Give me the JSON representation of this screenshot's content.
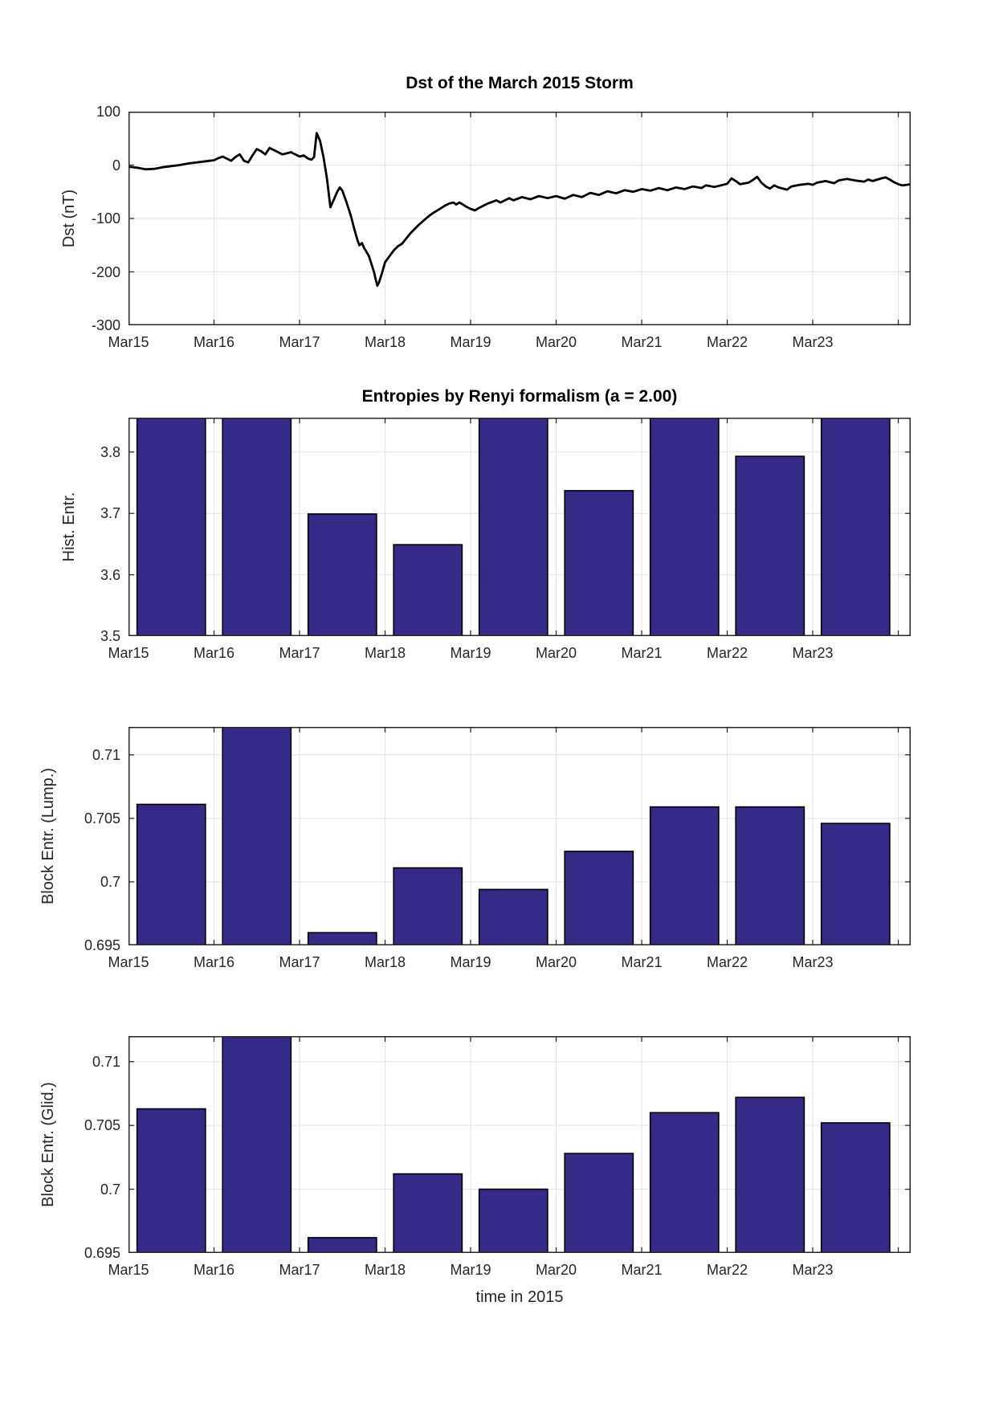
{
  "figure": {
    "background": "#ffffff"
  },
  "colors": {
    "bar_fill": "#352A87",
    "bar_edge": "#000000",
    "line": "#000000",
    "grid": "#E2E2E2",
    "axis": "#262626",
    "text": "#262626",
    "title": "#000000"
  },
  "clipped_note": "values of null are bars clipped by the top of the visible axis range",
  "chart_data": [
    {
      "name": "dst",
      "type": "line",
      "title": "Dst of the March 2015 Storm",
      "ylabel": "Dst (nT)",
      "xlabel": "",
      "ylim": [
        -300,
        100
      ],
      "yticks": [
        100,
        0,
        -100,
        -200,
        -300
      ],
      "grid_y": [
        0,
        -100,
        -200
      ],
      "xlim": [
        0,
        9.145
      ],
      "xticks": [
        0,
        1,
        2,
        3,
        4,
        5,
        6,
        7,
        8
      ],
      "xtick_labels": [
        "Mar15",
        "Mar16",
        "Mar17",
        "Mar18",
        "Mar19",
        "Mar20",
        "Mar21",
        "Mar22",
        "Mar23"
      ],
      "tick_x": [
        0,
        1,
        2,
        3,
        4,
        5,
        6,
        7,
        8,
        9
      ],
      "grid_x": [
        1,
        2,
        3,
        4,
        5,
        6,
        7,
        8,
        9
      ],
      "grid": true,
      "line_color": "#000000",
      "points": [
        [
          0.0,
          -3
        ],
        [
          0.1,
          -5
        ],
        [
          0.2,
          -8
        ],
        [
          0.3,
          -7
        ],
        [
          0.4,
          -4
        ],
        [
          0.5,
          -2
        ],
        [
          0.6,
          0
        ],
        [
          0.7,
          3
        ],
        [
          0.8,
          5
        ],
        [
          0.9,
          7
        ],
        [
          1.0,
          9
        ],
        [
          1.05,
          13
        ],
        [
          1.1,
          16
        ],
        [
          1.15,
          12
        ],
        [
          1.2,
          8
        ],
        [
          1.25,
          15
        ],
        [
          1.3,
          20
        ],
        [
          1.35,
          8
        ],
        [
          1.4,
          5
        ],
        [
          1.45,
          18
        ],
        [
          1.5,
          30
        ],
        [
          1.55,
          26
        ],
        [
          1.6,
          20
        ],
        [
          1.65,
          32
        ],
        [
          1.7,
          28
        ],
        [
          1.75,
          24
        ],
        [
          1.8,
          20
        ],
        [
          1.85,
          22
        ],
        [
          1.9,
          24
        ],
        [
          1.95,
          20
        ],
        [
          2.0,
          16
        ],
        [
          2.05,
          18
        ],
        [
          2.1,
          12
        ],
        [
          2.14,
          10
        ],
        [
          2.17,
          15
        ],
        [
          2.2,
          60
        ],
        [
          2.24,
          45
        ],
        [
          2.28,
          15
        ],
        [
          2.32,
          -25
        ],
        [
          2.36,
          -79
        ],
        [
          2.4,
          -65
        ],
        [
          2.44,
          -50
        ],
        [
          2.47,
          -42
        ],
        [
          2.5,
          -48
        ],
        [
          2.55,
          -70
        ],
        [
          2.6,
          -95
        ],
        [
          2.64,
          -120
        ],
        [
          2.68,
          -142
        ],
        [
          2.7,
          -150
        ],
        [
          2.73,
          -146
        ],
        [
          2.75,
          -154
        ],
        [
          2.78,
          -162
        ],
        [
          2.81,
          -170
        ],
        [
          2.84,
          -185
        ],
        [
          2.87,
          -200
        ],
        [
          2.89,
          -214
        ],
        [
          2.91,
          -226
        ],
        [
          2.93,
          -219
        ],
        [
          2.96,
          -204
        ],
        [
          3.0,
          -182
        ],
        [
          3.05,
          -171
        ],
        [
          3.1,
          -160
        ],
        [
          3.15,
          -152
        ],
        [
          3.2,
          -147
        ],
        [
          3.25,
          -137
        ],
        [
          3.3,
          -127
        ],
        [
          3.35,
          -119
        ],
        [
          3.4,
          -111
        ],
        [
          3.45,
          -104
        ],
        [
          3.5,
          -97
        ],
        [
          3.55,
          -91
        ],
        [
          3.6,
          -86
        ],
        [
          3.65,
          -81
        ],
        [
          3.7,
          -76
        ],
        [
          3.75,
          -72
        ],
        [
          3.8,
          -70
        ],
        [
          3.83,
          -74
        ],
        [
          3.87,
          -70
        ],
        [
          3.9,
          -73
        ],
        [
          3.95,
          -78
        ],
        [
          4.0,
          -82
        ],
        [
          4.05,
          -85
        ],
        [
          4.1,
          -80
        ],
        [
          4.2,
          -72
        ],
        [
          4.3,
          -66
        ],
        [
          4.35,
          -70
        ],
        [
          4.45,
          -62
        ],
        [
          4.5,
          -66
        ],
        [
          4.6,
          -60
        ],
        [
          4.7,
          -64
        ],
        [
          4.8,
          -58
        ],
        [
          4.9,
          -62
        ],
        [
          5.0,
          -58
        ],
        [
          5.1,
          -63
        ],
        [
          5.2,
          -56
        ],
        [
          5.3,
          -60
        ],
        [
          5.4,
          -52
        ],
        [
          5.5,
          -56
        ],
        [
          5.6,
          -49
        ],
        [
          5.7,
          -53
        ],
        [
          5.8,
          -47
        ],
        [
          5.9,
          -50
        ],
        [
          6.0,
          -45
        ],
        [
          6.1,
          -48
        ],
        [
          6.2,
          -43
        ],
        [
          6.3,
          -47
        ],
        [
          6.4,
          -42
        ],
        [
          6.5,
          -45
        ],
        [
          6.6,
          -40
        ],
        [
          6.7,
          -43
        ],
        [
          6.75,
          -38
        ],
        [
          6.85,
          -41
        ],
        [
          6.95,
          -37
        ],
        [
          7.0,
          -35
        ],
        [
          7.05,
          -25
        ],
        [
          7.1,
          -30
        ],
        [
          7.15,
          -36
        ],
        [
          7.25,
          -33
        ],
        [
          7.3,
          -28
        ],
        [
          7.35,
          -22
        ],
        [
          7.4,
          -33
        ],
        [
          7.45,
          -40
        ],
        [
          7.5,
          -44
        ],
        [
          7.55,
          -38
        ],
        [
          7.6,
          -42
        ],
        [
          7.7,
          -46
        ],
        [
          7.75,
          -40
        ],
        [
          7.85,
          -37
        ],
        [
          7.95,
          -35
        ],
        [
          8.0,
          -37
        ],
        [
          8.05,
          -33
        ],
        [
          8.15,
          -30
        ],
        [
          8.25,
          -34
        ],
        [
          8.3,
          -29
        ],
        [
          8.4,
          -26
        ],
        [
          8.5,
          -29
        ],
        [
          8.6,
          -31
        ],
        [
          8.65,
          -27
        ],
        [
          8.7,
          -30
        ],
        [
          8.8,
          -25
        ],
        [
          8.85,
          -23
        ],
        [
          8.9,
          -27
        ],
        [
          8.95,
          -32
        ],
        [
          9.0,
          -36
        ],
        [
          9.05,
          -38
        ],
        [
          9.1,
          -37
        ],
        [
          9.14,
          -36
        ]
      ]
    },
    {
      "name": "hist-entropy",
      "type": "bar",
      "title": "Entropies by Renyi formalism (a = 2.00)",
      "ylabel": "Hist. Entr.",
      "xlabel": "",
      "ylim": [
        3.5,
        3.856
      ],
      "yticks": [
        3.8,
        3.7,
        3.6,
        3.5
      ],
      "grid_y": [
        3.8,
        3.7,
        3.6
      ],
      "xlim": [
        0,
        9.145
      ],
      "xticks": [
        0,
        1,
        2,
        3,
        4,
        5,
        6,
        7,
        8
      ],
      "xtick_labels": [
        "Mar15",
        "Mar16",
        "Mar17",
        "Mar18",
        "Mar19",
        "Mar20",
        "Mar21",
        "Mar22",
        "Mar23"
      ],
      "tick_x": [
        0,
        1,
        2,
        3,
        4,
        5,
        6,
        7,
        8,
        9
      ],
      "grid_x": [
        1,
        2,
        3,
        4,
        5,
        6,
        7,
        8,
        9
      ],
      "grid": true,
      "categories": [
        "Mar15",
        "Mar16",
        "Mar17",
        "Mar18",
        "Mar19",
        "Mar20",
        "Mar21",
        "Mar22",
        "Mar23"
      ],
      "values": [
        null,
        null,
        3.699,
        3.649,
        null,
        3.737,
        null,
        3.793,
        null
      ],
      "clipped": [
        true,
        true,
        false,
        false,
        true,
        false,
        true,
        false,
        true
      ],
      "bar_fill": "#352A87",
      "bar_edge": "#000000"
    },
    {
      "name": "block-entropy-lumped",
      "type": "bar",
      "title": "",
      "ylabel": "Block Entr. (Lump.)",
      "xlabel": "",
      "ylim": [
        0.695,
        0.7122
      ],
      "yticks": [
        0.71,
        0.705,
        0.7,
        0.695
      ],
      "grid_y": [
        0.71,
        0.705,
        0.7
      ],
      "xlim": [
        0,
        9.145
      ],
      "xticks": [
        0,
        1,
        2,
        3,
        4,
        5,
        6,
        7,
        8
      ],
      "xtick_labels": [
        "Mar15",
        "Mar16",
        "Mar17",
        "Mar18",
        "Mar19",
        "Mar20",
        "Mar21",
        "Mar22",
        "Mar23"
      ],
      "tick_x": [
        0,
        1,
        2,
        3,
        4,
        5,
        6,
        7,
        8,
        9
      ],
      "grid_x": [
        1,
        2,
        3,
        4,
        5,
        6,
        7,
        8,
        9
      ],
      "grid": true,
      "categories": [
        "Mar15",
        "Mar16",
        "Mar17",
        "Mar18",
        "Mar19",
        "Mar20",
        "Mar21",
        "Mar22",
        "Mar23"
      ],
      "values": [
        0.7061,
        null,
        0.696,
        0.7011,
        0.6994,
        0.7024,
        0.7059,
        0.7059,
        0.7046
      ],
      "clipped": [
        false,
        true,
        false,
        false,
        false,
        false,
        false,
        false,
        false
      ],
      "bar_fill": "#352A87",
      "bar_edge": "#000000"
    },
    {
      "name": "block-entropy-gliding",
      "type": "bar",
      "title": "",
      "ylabel": "Block Entr. (Glid.)",
      "xlabel": "time in 2015",
      "ylim": [
        0.695,
        0.712
      ],
      "yticks": [
        0.71,
        0.705,
        0.7,
        0.695
      ],
      "grid_y": [
        0.71,
        0.705,
        0.7
      ],
      "xlim": [
        0,
        9.145
      ],
      "xticks": [
        0,
        1,
        2,
        3,
        4,
        5,
        6,
        7,
        8
      ],
      "xtick_labels": [
        "Mar15",
        "Mar16",
        "Mar17",
        "Mar18",
        "Mar19",
        "Mar20",
        "Mar21",
        "Mar22",
        "Mar23"
      ],
      "tick_x": [
        0,
        1,
        2,
        3,
        4,
        5,
        6,
        7,
        8,
        9
      ],
      "grid_x": [
        1,
        2,
        3,
        4,
        5,
        6,
        7,
        8,
        9
      ],
      "grid": true,
      "categories": [
        "Mar15",
        "Mar16",
        "Mar17",
        "Mar18",
        "Mar19",
        "Mar20",
        "Mar21",
        "Mar22",
        "Mar23"
      ],
      "values": [
        0.7063,
        null,
        0.6962,
        0.7012,
        0.7,
        0.7028,
        0.706,
        0.7072,
        0.7052
      ],
      "clipped": [
        false,
        true,
        false,
        false,
        false,
        false,
        false,
        false,
        false
      ],
      "bar_fill": "#352A87",
      "bar_edge": "#000000"
    }
  ]
}
